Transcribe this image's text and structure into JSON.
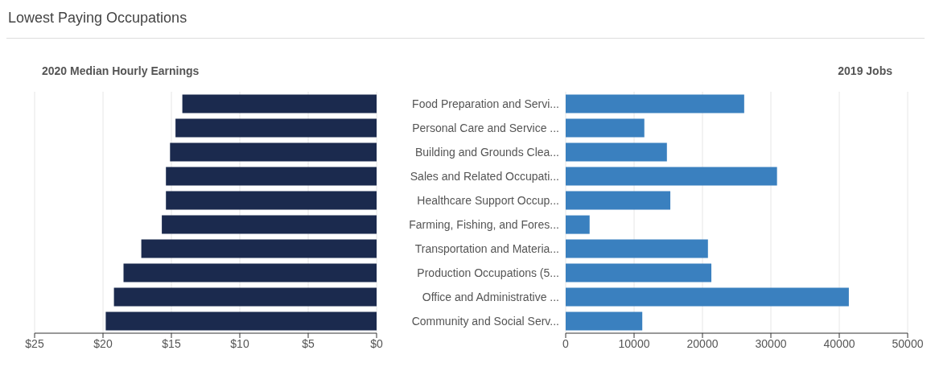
{
  "chart_data": [
    {
      "type": "bar",
      "orientation": "horizontal",
      "title": "Lowest Paying Occupations",
      "subtitle": "2020 Median Hourly Earnings",
      "categories": [
        null,
        null,
        null,
        null,
        null,
        null,
        null,
        null,
        null,
        null
      ],
      "values": [
        14.2,
        14.7,
        15.1,
        15.4,
        15.4,
        15.7,
        17.2,
        18.5,
        19.2,
        19.8
      ],
      "color": "#1b2a4e",
      "xlim": [
        25,
        0
      ],
      "xticks": [
        {
          "value": 25,
          "label": "$25"
        },
        {
          "value": 20,
          "label": "$20"
        },
        {
          "value": 15,
          "label": "$15"
        },
        {
          "value": 10,
          "label": "$10"
        },
        {
          "value": 5,
          "label": "$5"
        },
        {
          "value": 0,
          "label": "$0"
        }
      ],
      "grid": "x",
      "tick_labels": "x"
    },
    {
      "type": "bar",
      "orientation": "horizontal",
      "title": "2019 Jobs",
      "categories": [
        "Food Preparation and Servi...",
        "Personal Care and Service ...",
        "Building and Grounds Clea...",
        "Sales and Related Occupati...",
        "Healthcare Support Occup...",
        "Farming, Fishing, and Fores...",
        "Transportation and Materia...",
        "Production Occupations (5...",
        "Office and Administrative ...",
        "Community and Social Serv..."
      ],
      "values": [
        26100,
        11500,
        14800,
        30900,
        15300,
        3500,
        20800,
        21300,
        41400,
        11200
      ],
      "color": "#3a80bf",
      "xlim": [
        0,
        50000
      ],
      "xticks": [
        0,
        10000,
        20000,
        30000,
        40000,
        50000
      ],
      "grid": "x"
    }
  ]
}
